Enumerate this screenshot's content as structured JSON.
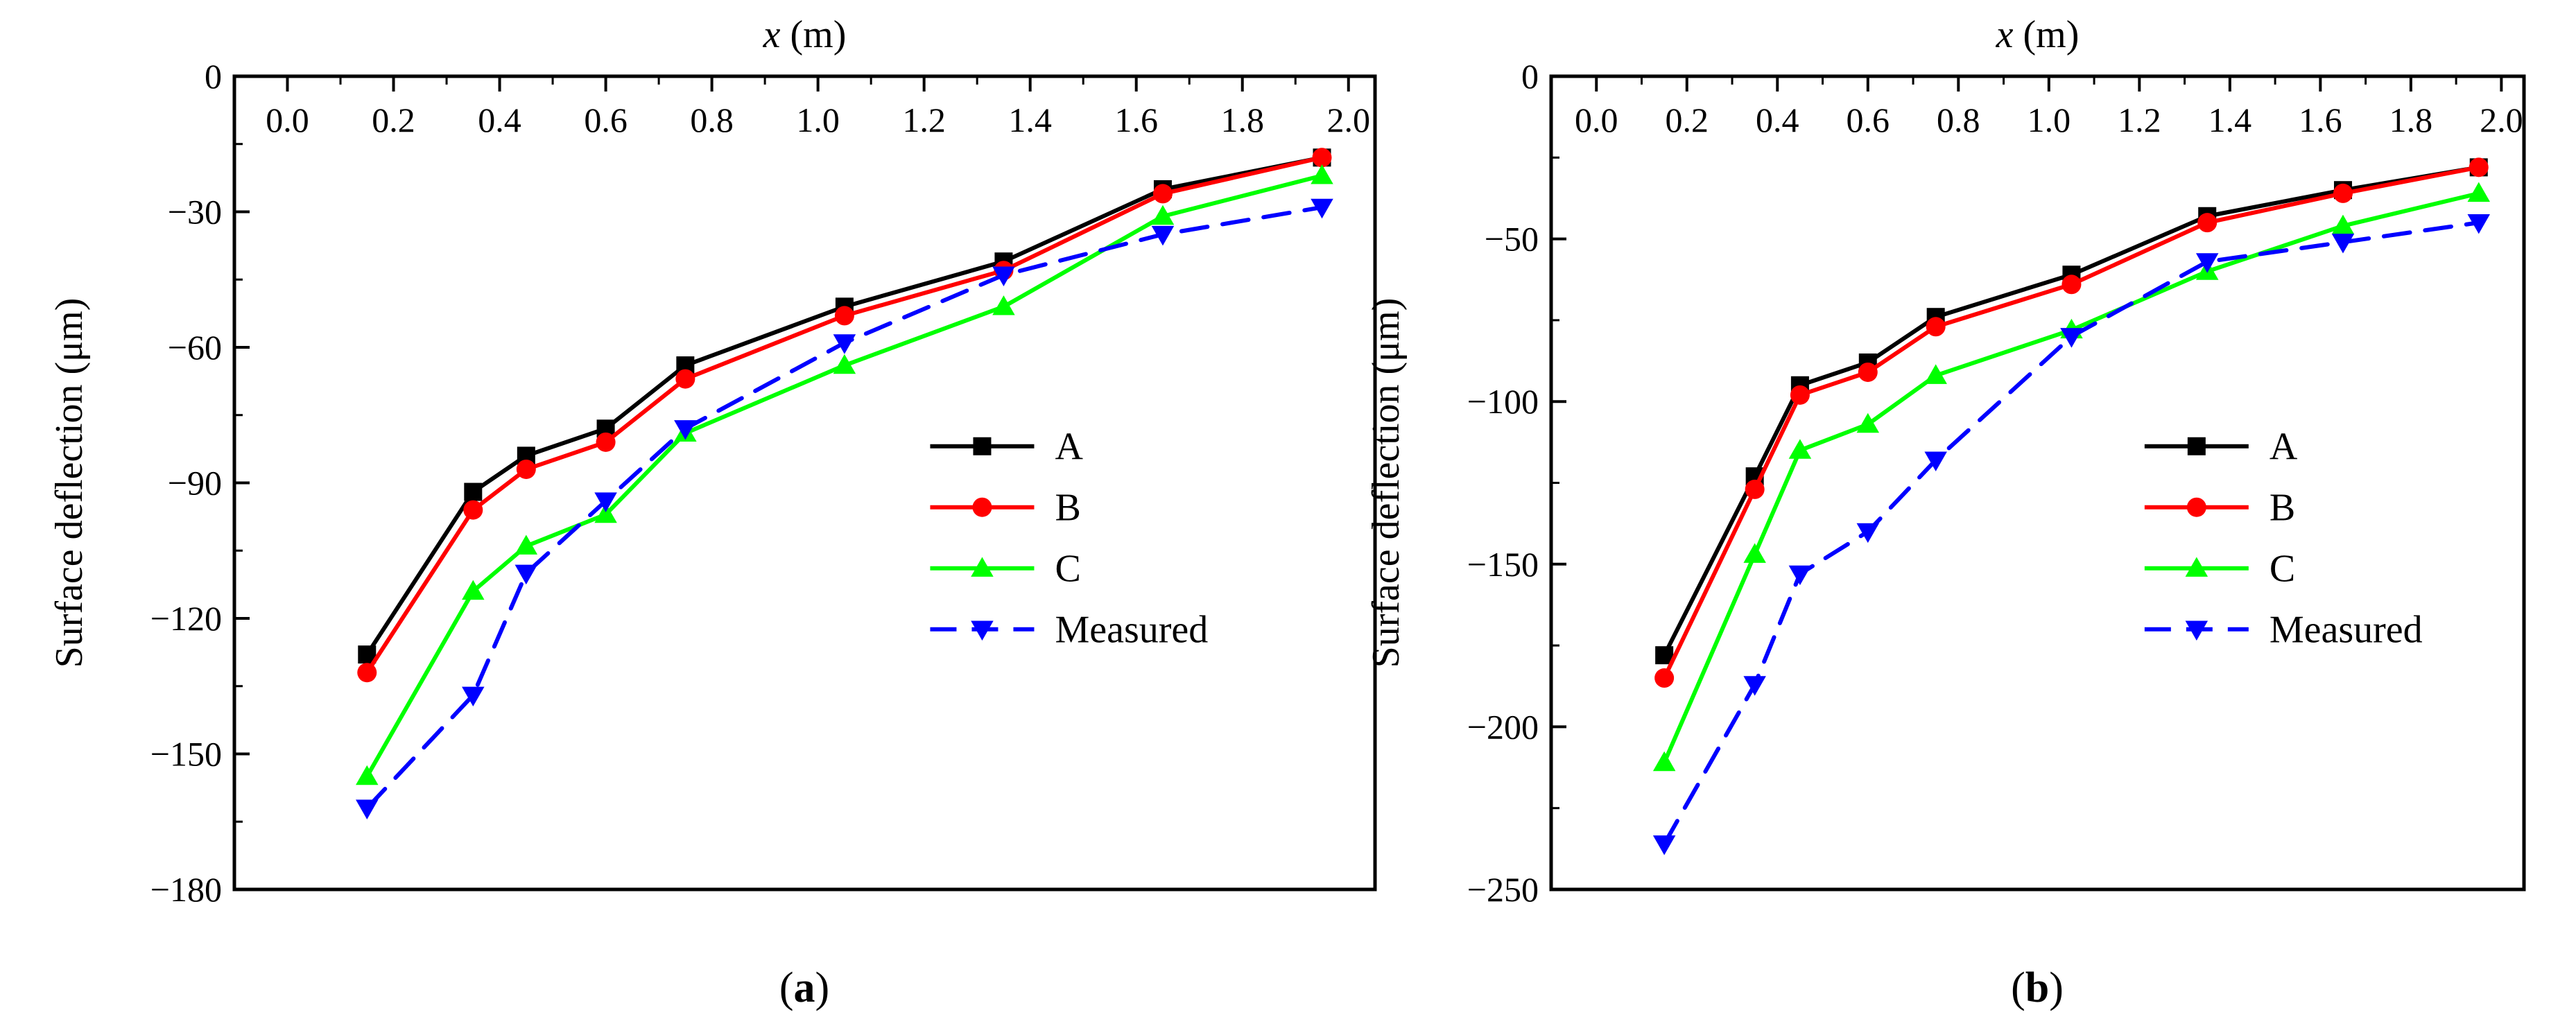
{
  "chart_data": [
    {
      "type": "line",
      "panel_label": {
        "open": "(",
        "letter": "a",
        "close": ")"
      },
      "xlabel": {
        "var": "x",
        "unit": " (m)"
      },
      "ylabel": "Surface deflection (μm)",
      "x_axis_position": "top",
      "xlim": [
        -0.1,
        2.05
      ],
      "ylim": [
        -180,
        0
      ],
      "xticks": [
        0.0,
        0.2,
        0.4,
        0.6,
        0.8,
        1.0,
        1.2,
        1.4,
        1.6,
        1.8,
        2.0
      ],
      "xtick_labels": [
        "0.0",
        "0.2",
        "0.4",
        "0.6",
        "0.8",
        "1.0",
        "1.2",
        "1.4",
        "1.6",
        "1.8",
        "2.0"
      ],
      "yticks": [
        0,
        -30,
        -60,
        -90,
        -120,
        -150,
        -180
      ],
      "ytick_labels": [
        "0",
        "−30",
        "−60",
        "−90",
        "−120",
        "−150",
        "−180"
      ],
      "x": [
        0.15,
        0.35,
        0.45,
        0.6,
        0.75,
        1.05,
        1.35,
        1.65,
        1.95
      ],
      "series": [
        {
          "name": "A",
          "color": "#000000",
          "marker": "square",
          "dash": "solid",
          "values": [
            -128,
            -92,
            -84,
            -78,
            -64,
            -51,
            -41,
            -25,
            -18
          ]
        },
        {
          "name": "B",
          "color": "#ff0000",
          "marker": "circle",
          "dash": "solid",
          "values": [
            -132,
            -96,
            -87,
            -81,
            -67,
            -53,
            -43,
            -26,
            -18
          ]
        },
        {
          "name": "C",
          "color": "#00ff00",
          "marker": "triangle-up",
          "dash": "solid",
          "values": [
            -155,
            -114,
            -104,
            -97,
            -79,
            -64,
            -51,
            -31,
            -22
          ]
        },
        {
          "name": "Measured",
          "color": "#0000ff",
          "marker": "triangle-down",
          "dash": "dashed",
          "values": [
            -162,
            -137,
            -110,
            -94,
            -78,
            -59,
            -44,
            -35,
            -29
          ]
        }
      ],
      "legend": "lower-right"
    },
    {
      "type": "line",
      "panel_label": {
        "open": "(",
        "letter": "b",
        "close": ")"
      },
      "xlabel": {
        "var": "x",
        "unit": " (m)"
      },
      "ylabel": "Surface deflection (μm)",
      "x_axis_position": "top",
      "xlim": [
        -0.1,
        2.05
      ],
      "ylim": [
        -250,
        0
      ],
      "xticks": [
        0.0,
        0.2,
        0.4,
        0.6,
        0.8,
        1.0,
        1.2,
        1.4,
        1.6,
        1.8,
        2.0
      ],
      "xtick_labels": [
        "0.0",
        "0.2",
        "0.4",
        "0.6",
        "0.8",
        "1.0",
        "1.2",
        "1.4",
        "1.6",
        "1.8",
        "2.0"
      ],
      "yticks": [
        0,
        -50,
        -100,
        -150,
        -200,
        -250
      ],
      "ytick_labels": [
        "0",
        "−50",
        "−100",
        "−150",
        "−200",
        "−250"
      ],
      "x": [
        0.15,
        0.35,
        0.45,
        0.6,
        0.75,
        1.05,
        1.35,
        1.65,
        1.95
      ],
      "series": [
        {
          "name": "A",
          "color": "#000000",
          "marker": "square",
          "dash": "solid",
          "values": [
            -178,
            -123,
            -95,
            -88,
            -74,
            -61,
            -43,
            -35,
            -28
          ]
        },
        {
          "name": "B",
          "color": "#ff0000",
          "marker": "circle",
          "dash": "solid",
          "values": [
            -185,
            -127,
            -98,
            -91,
            -77,
            -64,
            -45,
            -36,
            -28
          ]
        },
        {
          "name": "C",
          "color": "#00ff00",
          "marker": "triangle-up",
          "dash": "solid",
          "values": [
            -211,
            -147,
            -115,
            -107,
            -92,
            -78,
            -60,
            -46,
            -36
          ]
        },
        {
          "name": "Measured",
          "color": "#0000ff",
          "marker": "triangle-down",
          "dash": "dashed",
          "values": [
            -236,
            -187,
            -153,
            -140,
            -118,
            -80,
            -57,
            -51,
            -45
          ]
        }
      ],
      "legend": "lower-right"
    }
  ]
}
